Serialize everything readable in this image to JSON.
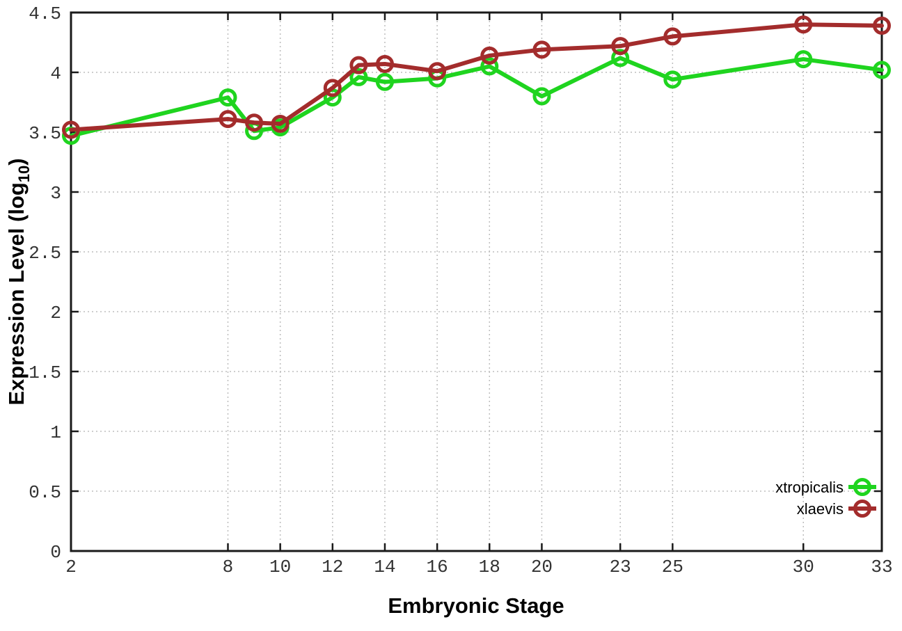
{
  "chart_data": {
    "type": "line",
    "title": "",
    "xlabel": "Embryonic Stage",
    "ylabel": "Expression Level (log10)",
    "ylabel_parts": {
      "prefix": "Expression Level (log",
      "sub": "10",
      "suffix": ")"
    },
    "x": [
      2,
      8,
      9,
      10,
      12,
      13,
      14,
      16,
      18,
      20,
      23,
      25,
      30,
      33
    ],
    "series": [
      {
        "name": "xtropicalis",
        "color": "#1fd41f",
        "values": [
          3.47,
          3.79,
          3.51,
          3.54,
          3.79,
          3.96,
          3.92,
          3.95,
          4.05,
          3.8,
          4.12,
          3.94,
          4.11,
          4.02
        ]
      },
      {
        "name": "xlaevis",
        "color": "#a32c2c",
        "values": [
          3.52,
          3.61,
          3.58,
          3.57,
          3.87,
          4.06,
          4.07,
          4.01,
          4.14,
          4.19,
          4.22,
          4.3,
          4.4,
          4.39
        ]
      }
    ],
    "xticks": [
      2,
      8,
      10,
      12,
      14,
      16,
      18,
      20,
      23,
      25,
      30,
      33
    ],
    "xtick_labels": [
      "2",
      "8",
      "10",
      "12",
      "14",
      "16",
      "18",
      "20",
      "23",
      "25",
      "30",
      "33"
    ],
    "yticks": [
      0,
      0.5,
      1,
      1.5,
      2,
      2.5,
      3,
      3.5,
      4,
      4.5
    ],
    "ytick_labels": [
      "0",
      "0.5",
      "1",
      "1.5",
      "2",
      "2.5",
      "3",
      "3.5",
      "4",
      "4.5"
    ],
    "xlim": [
      2,
      33
    ],
    "ylim": [
      0,
      4.5
    ],
    "grid": true,
    "grid_style": "dotted",
    "legend_position": "bottom-right",
    "marker": "open-circle",
    "colors": {
      "axis": "#1a1a1a",
      "grid": "#bdbdbd",
      "tick_text": "#333333",
      "background": "#ffffff"
    }
  }
}
